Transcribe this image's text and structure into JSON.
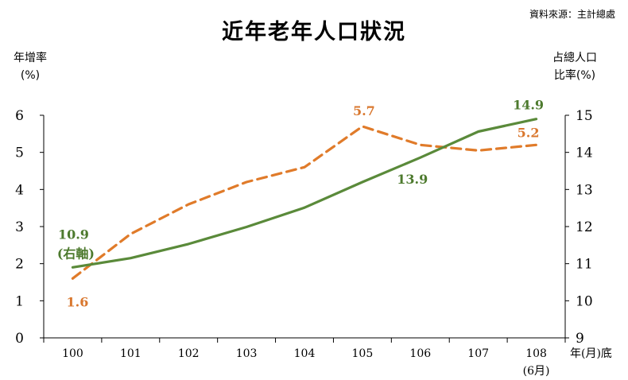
{
  "page": {
    "title": "近年老年人口狀況",
    "source": "資料來源：主計總處"
  },
  "axes": {
    "left_label_line1": "年增率",
    "left_label_line2": "(%)",
    "right_label_line1": "占總人口",
    "right_label_line2": "比率(%)",
    "x_suffix": "年(月)底",
    "last_category_sub": "(6月)"
  },
  "colors": {
    "growth": "#e07b2a",
    "share": "#5a8a3a",
    "growth_label": "#d9772e",
    "share_label": "#4d7a2e",
    "axis": "#000000"
  },
  "chart_data": {
    "type": "line",
    "categories": [
      "100",
      "101",
      "102",
      "103",
      "104",
      "105",
      "106",
      "107",
      "108"
    ],
    "ylim_left": [
      0,
      6
    ],
    "ylim_right": [
      9,
      15
    ],
    "left_ticks": [
      "0",
      "1",
      "2",
      "3",
      "4",
      "5",
      "6"
    ],
    "right_ticks": [
      "9",
      "10",
      "11",
      "12",
      "13",
      "14",
      "15"
    ],
    "series": [
      {
        "key": "growth",
        "axis": "left",
        "style": "dashed",
        "values": [
          1.6,
          2.8,
          3.6,
          4.2,
          4.6,
          5.7,
          5.2,
          5.05,
          5.2
        ]
      },
      {
        "key": "share",
        "axis": "right",
        "style": "solid",
        "values": [
          10.9,
          11.15,
          11.53,
          11.99,
          12.51,
          13.2,
          13.86,
          14.56,
          14.9
        ]
      }
    ],
    "annotations": [
      {
        "series": "growth",
        "index": 0,
        "text": "1.6"
      },
      {
        "series": "growth",
        "index": 5,
        "text": "5.7"
      },
      {
        "series": "growth",
        "index": 8,
        "text": "5.2"
      },
      {
        "series": "share",
        "index": 0,
        "text": "10.9"
      },
      {
        "series": "share",
        "index": 0,
        "text": "(右軸)"
      },
      {
        "series": "share",
        "index": 6,
        "text": "13.9"
      },
      {
        "series": "share",
        "index": 8,
        "text": "14.9"
      }
    ],
    "grid": false
  }
}
